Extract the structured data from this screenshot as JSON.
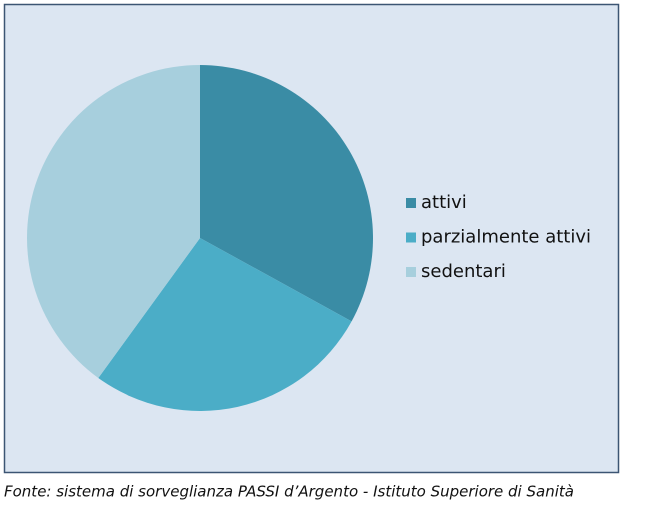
{
  "chart_data": {
    "type": "pie",
    "categories": [
      "attivi",
      "parzialmente attivi",
      "sedentari"
    ],
    "values": [
      33,
      27,
      40
    ],
    "colors": [
      "#3a8ca5",
      "#4badc7",
      "#a7cfdd"
    ],
    "legend": "right",
    "source": "Fonte: sistema di sorveglianza PASSI d’Argento - Istituto Superiore di Sanità"
  }
}
